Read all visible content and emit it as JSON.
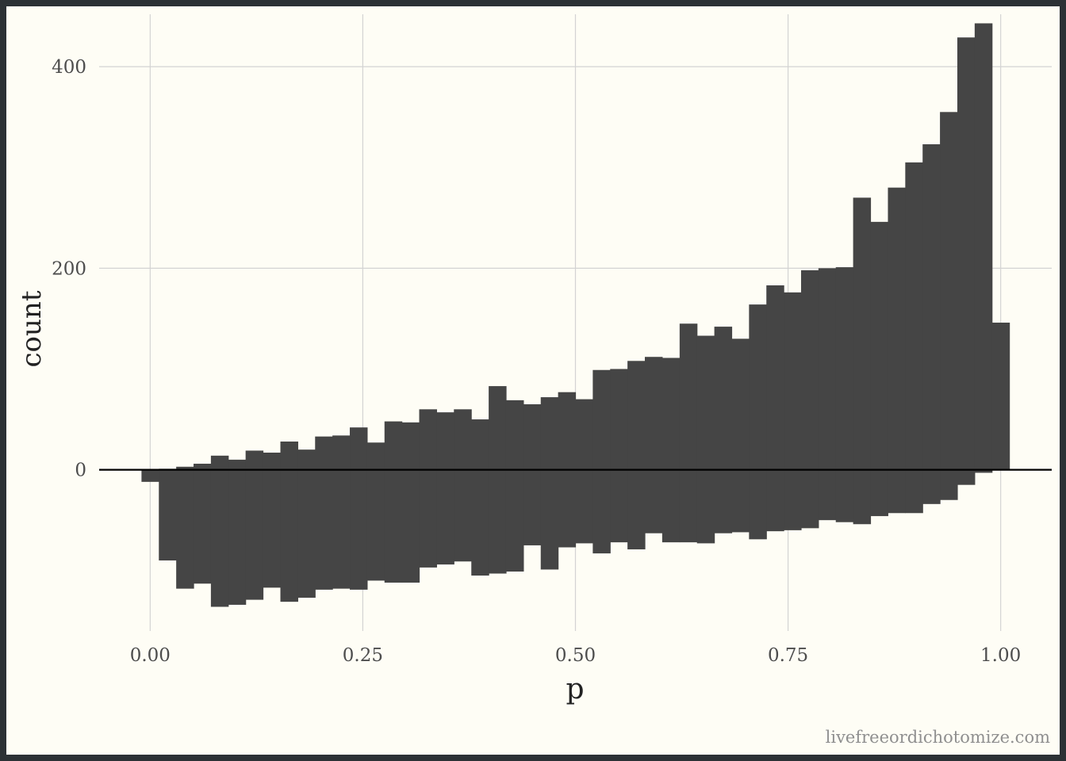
{
  "credit": "livefreeordichotomize.com",
  "colors": {
    "background": "#fefdf5",
    "bar": "#454545",
    "grid": "#d3d3d3",
    "zero_line": "#000000"
  },
  "chart_data": {
    "type": "bar",
    "subtype": "mirrored-histogram",
    "xlabel": "p",
    "ylabel": "count",
    "xlim": [
      -0.06,
      1.06
    ],
    "ylim": [
      -160,
      452
    ],
    "x_ticks": [
      0,
      0.25,
      0.5,
      0.75,
      1
    ],
    "x_tick_labels": [
      "0.00",
      "0.25",
      "0.50",
      "0.75",
      "1.00"
    ],
    "y_ticks": [
      0,
      200,
      400
    ],
    "y_tick_labels": [
      "0",
      "200",
      "400"
    ],
    "grid": true,
    "legend": "none",
    "bin_width": 0.0204,
    "bin_centers": [
      0.0,
      0.0204,
      0.0408,
      0.0612,
      0.0816,
      0.102,
      0.1224,
      0.1429,
      0.1633,
      0.1837,
      0.2041,
      0.2245,
      0.2449,
      0.2653,
      0.2857,
      0.3061,
      0.3265,
      0.3469,
      0.3673,
      0.3878,
      0.4082,
      0.4286,
      0.449,
      0.4694,
      0.4898,
      0.5102,
      0.5306,
      0.551,
      0.5714,
      0.5918,
      0.6122,
      0.6327,
      0.6531,
      0.6735,
      0.6939,
      0.7143,
      0.7347,
      0.7551,
      0.7755,
      0.7959,
      0.8163,
      0.8367,
      0.8571,
      0.8776,
      0.898,
      0.9184,
      0.9388,
      0.9592,
      0.9796,
      1.0
    ],
    "series": [
      {
        "values": [
          0,
          1,
          3,
          6,
          14,
          10,
          19,
          17,
          28,
          20,
          33,
          34,
          42,
          27,
          48,
          47,
          60,
          57,
          60,
          50,
          83,
          69,
          65,
          72,
          77,
          70,
          99,
          100,
          108,
          112,
          111,
          145,
          133,
          142,
          130,
          164,
          183,
          176,
          198,
          200,
          201,
          270,
          246,
          280,
          305,
          323,
          355,
          429,
          443,
          146
        ]
      },
      {
        "values": [
          -12,
          -90,
          -118,
          -113,
          -136,
          -134,
          -129,
          -117,
          -131,
          -127,
          -119,
          -118,
          -119,
          -110,
          -112,
          -112,
          -97,
          -94,
          -91,
          -105,
          -103,
          -101,
          -75,
          -99,
          -77,
          -73,
          -83,
          -72,
          -79,
          -63,
          -72,
          -72,
          -73,
          -63,
          -62,
          -69,
          -61,
          -60,
          -58,
          -50,
          -52,
          -54,
          -46,
          -43,
          -43,
          -34,
          -30,
          -15,
          -3,
          0
        ]
      }
    ]
  }
}
